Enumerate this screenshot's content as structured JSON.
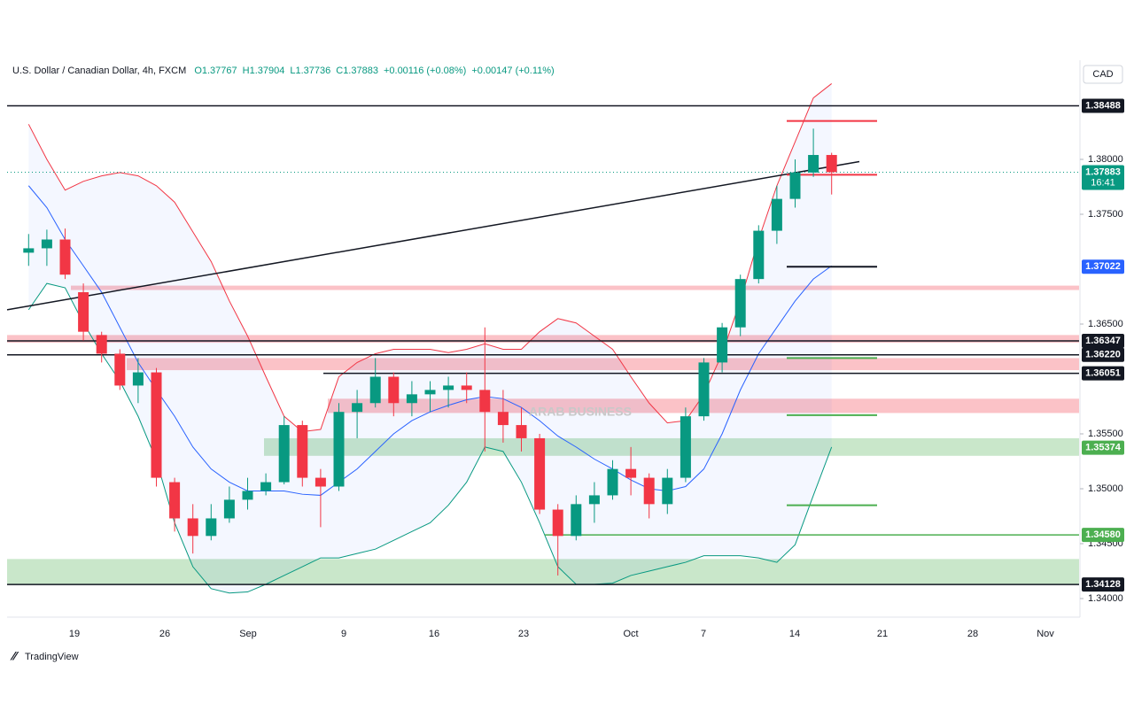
{
  "chart_data": {
    "type": "candlestick",
    "title": "U.S. Dollar / Canadian Dollar, 4h, FXCM",
    "legend_values": [
      "O1.37767",
      "H1.37904",
      "L1.37736",
      "C1.37883",
      "+0.00116 (+0.08%)",
      "+0.00147 (+0.11%)"
    ],
    "currency": "CAD",
    "branding": "TradingView",
    "watermark": "ARAB BUSINESS",
    "xticks": [
      "19",
      "26",
      "Sep",
      "9",
      "16",
      "23",
      "Oct",
      "7",
      "14",
      "21",
      "28",
      "Nov"
    ],
    "ylim": [
      1.33887,
      1.38887
    ],
    "yticks": [
      {
        "value": 1.38,
        "label": "1.38000"
      },
      {
        "value": 1.375,
        "label": "1.37500"
      },
      {
        "value": 1.365,
        "label": "1.36500"
      },
      {
        "value": 1.355,
        "label": "1.35500"
      },
      {
        "value": 1.35,
        "label": "1.35000"
      },
      {
        "value": 1.345,
        "label": "1.34500"
      },
      {
        "value": 1.34,
        "label": "1.34000"
      }
    ],
    "up_color": "#089981",
    "down_color": "#f23645",
    "candles": {
      "open": [
        1.3715,
        1.3719,
        1.3727,
        1.3679,
        1.364,
        1.3623,
        1.3594,
        1.3606,
        1.3506,
        1.3473,
        1.3457,
        1.3473,
        1.349,
        1.3498,
        1.3506,
        1.3558,
        1.351,
        1.3502,
        1.357,
        1.3578,
        1.3602,
        1.3578,
        1.3586,
        1.359,
        1.3594,
        1.359,
        1.357,
        1.3558,
        1.3546,
        1.3481,
        1.3457,
        1.3486,
        1.3494,
        1.3518,
        1.351,
        1.3486,
        1.351,
        1.3566,
        1.3615,
        1.3647,
        1.3691,
        1.3735,
        1.3764,
        1.3788,
        1.3804
      ],
      "high": [
        1.3732,
        1.3736,
        1.3737,
        1.3687,
        1.3643,
        1.3627,
        1.3619,
        1.361,
        1.351,
        1.3486,
        1.3486,
        1.3502,
        1.351,
        1.3514,
        1.3566,
        1.3562,
        1.3518,
        1.3578,
        1.359,
        1.3619,
        1.3606,
        1.3598,
        1.3598,
        1.3602,
        1.3606,
        1.3647,
        1.359,
        1.3574,
        1.355,
        1.3486,
        1.3494,
        1.3506,
        1.3526,
        1.3538,
        1.3514,
        1.3518,
        1.3574,
        1.3619,
        1.3651,
        1.3695,
        1.374,
        1.3776,
        1.38,
        1.3828,
        1.3806
      ],
      "low": [
        1.3703,
        1.3703,
        1.3691,
        1.3635,
        1.3615,
        1.359,
        1.3578,
        1.3502,
        1.3461,
        1.3441,
        1.3453,
        1.3469,
        1.3481,
        1.3494,
        1.3504,
        1.3502,
        1.3465,
        1.3498,
        1.3546,
        1.3574,
        1.3566,
        1.3566,
        1.357,
        1.3574,
        1.3578,
        1.3534,
        1.3542,
        1.3534,
        1.3477,
        1.3421,
        1.3453,
        1.3469,
        1.349,
        1.3494,
        1.3473,
        1.3477,
        1.3506,
        1.3562,
        1.3606,
        1.3639,
        1.3687,
        1.3723,
        1.3756,
        1.3784,
        1.3768
      ],
      "close": [
        1.3719,
        1.3727,
        1.3695,
        1.3643,
        1.3623,
        1.3594,
        1.3606,
        1.351,
        1.3473,
        1.3457,
        1.3473,
        1.349,
        1.3498,
        1.3506,
        1.3558,
        1.351,
        1.3502,
        1.357,
        1.3578,
        1.3602,
        1.3578,
        1.3586,
        1.359,
        1.3594,
        1.359,
        1.357,
        1.3558,
        1.3546,
        1.3481,
        1.3457,
        1.3486,
        1.3494,
        1.3518,
        1.351,
        1.3486,
        1.351,
        1.3566,
        1.3615,
        1.3647,
        1.3691,
        1.3735,
        1.3764,
        1.3788,
        1.3804,
        1.37883
      ]
    },
    "bands": {
      "upper_color": "#f23645",
      "middle_color": "#2962ff",
      "lower_color": "#089981",
      "fill_color": "#2962ff",
      "upper": [
        1.3832,
        1.38,
        1.3772,
        1.378,
        1.3785,
        1.3788,
        1.3785,
        1.3776,
        1.3761,
        1.3734,
        1.3707,
        1.3671,
        1.3639,
        1.3602,
        1.3566,
        1.3552,
        1.3554,
        1.3602,
        1.3615,
        1.3623,
        1.3627,
        1.3627,
        1.3627,
        1.3624,
        1.3627,
        1.3632,
        1.3627,
        1.3627,
        1.3643,
        1.3655,
        1.3651,
        1.3639,
        1.3627,
        1.3602,
        1.3578,
        1.356,
        1.3562,
        1.3586,
        1.3623,
        1.3671,
        1.3727,
        1.3776,
        1.3816,
        1.3856,
        1.3869
      ],
      "middle": [
        1.3776,
        1.3756,
        1.3727,
        1.3703,
        1.3679,
        1.3647,
        1.3615,
        1.359,
        1.3566,
        1.3538,
        1.3518,
        1.3506,
        1.3498,
        1.3498,
        1.3498,
        1.3495,
        1.3494,
        1.3506,
        1.3518,
        1.3534,
        1.355,
        1.3562,
        1.357,
        1.3576,
        1.3581,
        1.3584,
        1.3582,
        1.3574,
        1.3562,
        1.3548,
        1.3538,
        1.3527,
        1.3518,
        1.3508,
        1.35,
        1.3498,
        1.3502,
        1.3518,
        1.355,
        1.359,
        1.3623,
        1.3647,
        1.3671,
        1.3691,
        1.3703
      ],
      "lower": [
        1.3663,
        1.3687,
        1.3683,
        1.3651,
        1.3623,
        1.3598,
        1.3566,
        1.3526,
        1.3469,
        1.3429,
        1.3409,
        1.3405,
        1.3406,
        1.3413,
        1.3421,
        1.3429,
        1.3437,
        1.3437,
        1.3441,
        1.3445,
        1.3453,
        1.3461,
        1.3469,
        1.3485,
        1.3506,
        1.3538,
        1.3534,
        1.3506,
        1.3469,
        1.3429,
        1.3413,
        1.3413,
        1.3414,
        1.3421,
        1.3425,
        1.3429,
        1.3433,
        1.3439,
        1.3439,
        1.3439,
        1.3437,
        1.3433,
        1.3449,
        1.3494,
        1.3538
      ]
    },
    "trendline": {
      "values": [
        1.3663,
        1.3798
      ],
      "color": "#131722"
    },
    "zones": [
      {
        "from": 1.3685,
        "to": 1.3681,
        "color": "#f23645"
      },
      {
        "from": 1.364,
        "to": 1.3633,
        "color": "#f23645"
      },
      {
        "from": 1.3619,
        "to": 1.3608,
        "color": "#f23645"
      },
      {
        "from": 1.3582,
        "to": 1.3569,
        "color": "#f23645"
      },
      {
        "from": 1.3546,
        "to": 1.353,
        "color": "#4caf50",
        "tag": 1.35374
      },
      {
        "from": 1.3436,
        "to": 1.3413,
        "color": "#4caf50"
      }
    ],
    "levels": [
      {
        "price": 1.38488,
        "color": "#131722"
      },
      {
        "price": 1.36347,
        "color": "#131722"
      },
      {
        "price": {
          "value": 1.3622,
          "label": "1.36220"
        },
        "color": "#131722"
      },
      {
        "price": 1.36051,
        "color": "#131722"
      },
      {
        "price": {
          "value": 1.3458,
          "label": "1.34580"
        },
        "color": "#4caf50"
      },
      {
        "price": 1.34128,
        "color": "#131722"
      }
    ],
    "markers": [
      {
        "price": 1.3835,
        "color": "#f23645"
      },
      {
        "price": 1.3786,
        "color": "#f23645"
      },
      {
        "price": 1.37022,
        "color": "#131722",
        "tag_color": "#2962ff"
      },
      {
        "price": 1.3619,
        "color": "#4caf50"
      },
      {
        "price": 1.3567,
        "color": "#4caf50"
      },
      {
        "price": 1.3485,
        "color": "#4caf50"
      }
    ],
    "last": {
      "price": 1.37883,
      "countdown": "16:41",
      "color": "#089981"
    }
  }
}
